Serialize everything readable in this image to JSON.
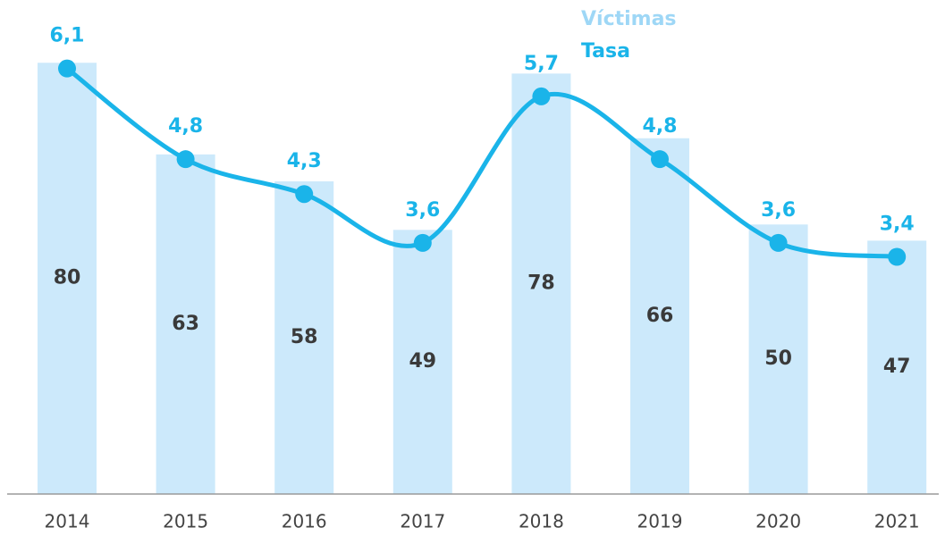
{
  "chart_data": {
    "type": "bar+line",
    "categories": [
      "2014",
      "2015",
      "2016",
      "2017",
      "2018",
      "2019",
      "2020",
      "2021"
    ],
    "series": [
      {
        "name": "Víctimas",
        "type": "bar",
        "color": "#cce9fb",
        "values": [
          80,
          63,
          58,
          49,
          78,
          66,
          50,
          47
        ]
      },
      {
        "name": "Tasa",
        "type": "line",
        "axis": "y2",
        "color": "#1ab4e9",
        "values": [
          6.1,
          4.8,
          4.3,
          3.6,
          5.7,
          4.8,
          3.6,
          3.4
        ],
        "value_labels": [
          "6,1",
          "4,8",
          "4,3",
          "3,6",
          "5,7",
          "4,8",
          "3,6",
          "3,4"
        ]
      }
    ],
    "ylim": [
      0,
      88
    ],
    "y2lim": [
      0,
      6.8
    ]
  }
}
